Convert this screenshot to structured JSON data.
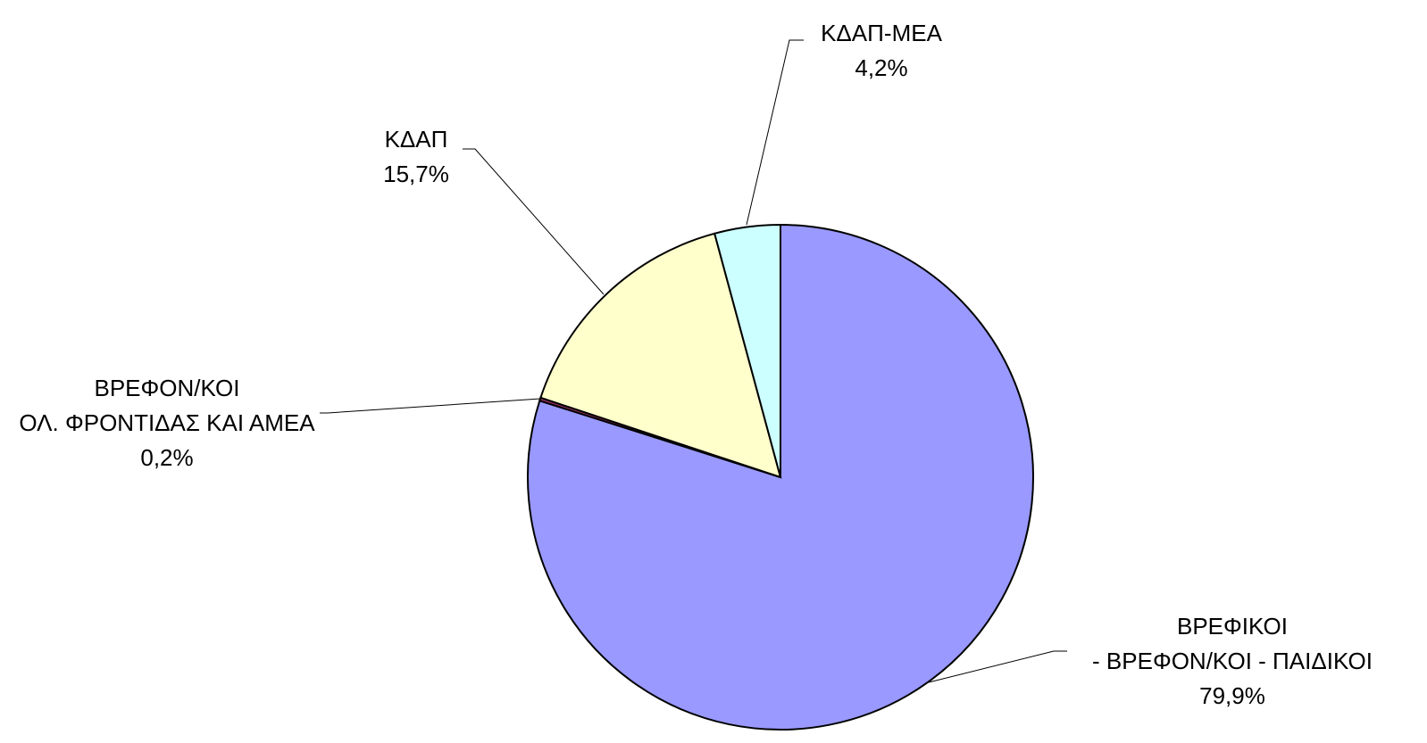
{
  "chart_data": {
    "type": "pie",
    "categories": [
      "ΒΡΕΦΙΚΟΙ - ΒΡΕΦΟΝ/ΚΟΙ - ΠΑΙΔΙΚΟΙ",
      "ΒΡΕΦΟΝ/ΚΟΙ ΟΛ. ΦΡΟΝΤΙΔΑΣ ΚΑΙ ΑΜΕΑ",
      "ΚΔΑΠ",
      "ΚΔΑΠ-ΜΕΑ"
    ],
    "values": [
      79.9,
      0.2,
      15.7,
      4.2
    ],
    "value_labels": [
      "79,9%",
      "0,2%",
      "15,7%",
      "4,2%"
    ],
    "colors": [
      "#9999ff",
      "#993366",
      "#ffffcc",
      "#ccffff"
    ]
  }
}
